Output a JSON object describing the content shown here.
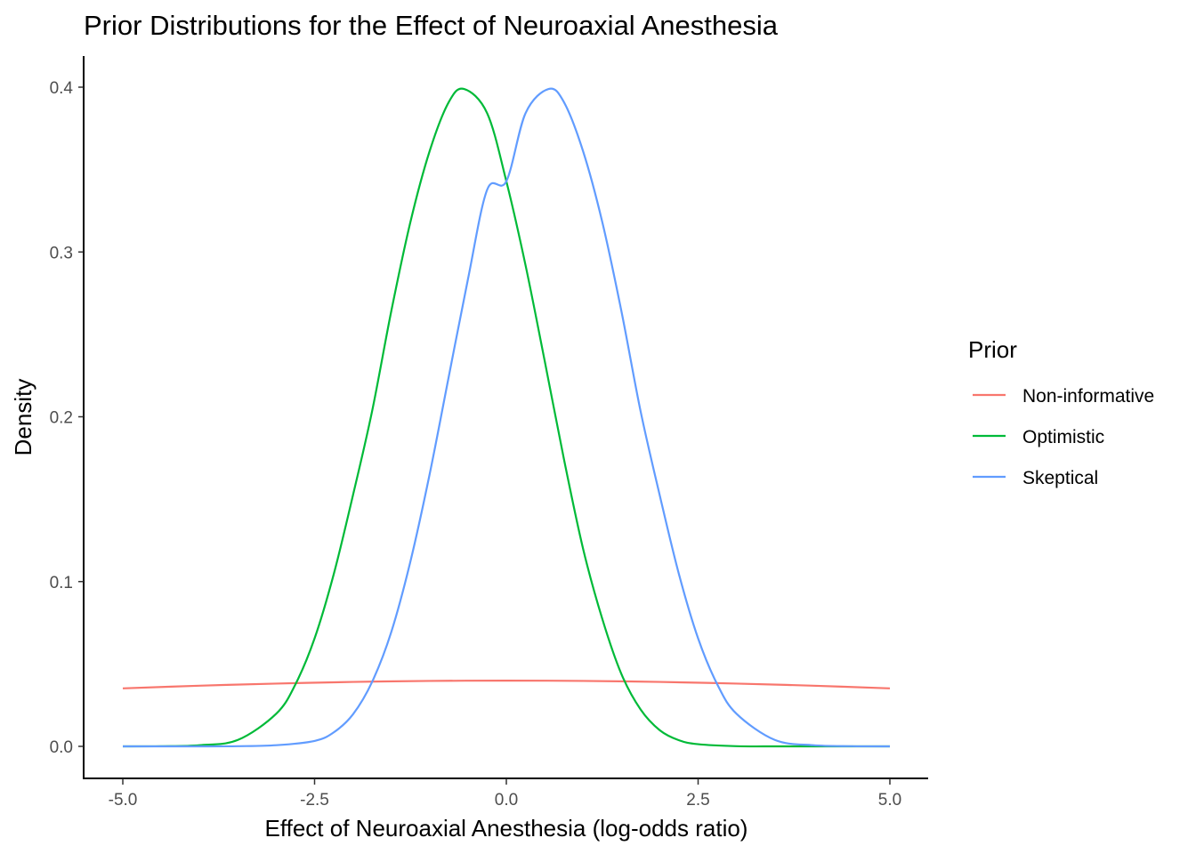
{
  "chart_data": {
    "type": "line",
    "title": "Prior Distributions for the Effect of Neuroaxial Anesthesia",
    "xlabel": "Effect of Neuroaxial Anesthesia (log-odds ratio)",
    "ylabel": "Density",
    "xlim": [
      -5,
      5
    ],
    "ylim": [
      0,
      0.4
    ],
    "xticks": [
      "-5.0",
      "-2.5",
      "0.0",
      "2.5",
      "5.0"
    ],
    "xtick_values": [
      -5,
      -2.5,
      0,
      2.5,
      5
    ],
    "yticks": [
      "0.0",
      "0.1",
      "0.2",
      "0.3",
      "0.4"
    ],
    "ytick_values": [
      0,
      0.1,
      0.2,
      0.3,
      0.4
    ],
    "grid": false,
    "legend": {
      "title": "Prior",
      "placement": "right"
    },
    "series": [
      {
        "name": "Non-informative",
        "color": "#F8766D",
        "x": [
          -5,
          -4,
          -3,
          -2,
          -1,
          0,
          1,
          2,
          3,
          4,
          5
        ],
        "y": [
          0.0352,
          0.0368,
          0.0381,
          0.0391,
          0.0397,
          0.0399,
          0.0397,
          0.0391,
          0.0381,
          0.0368,
          0.0352
        ]
      },
      {
        "name": "Optimistic",
        "color": "#00BA38",
        "x": [
          -5,
          -4.5,
          -4,
          -3.5,
          -3,
          -2.75,
          -2.5,
          -2.25,
          -2,
          -1.75,
          -1.5,
          -1.25,
          -1,
          -0.75,
          -0.55,
          -0.25,
          0,
          0.25,
          0.5,
          0.75,
          1,
          1.25,
          1.5,
          1.75,
          2,
          2.25,
          2.5,
          3,
          3.5,
          4,
          4.5,
          5
        ],
        "y": [
          0,
          0.0001,
          0.0007,
          0.0039,
          0.0198,
          0.0376,
          0.0655,
          0.1045,
          0.1523,
          0.2034,
          0.2641,
          0.3183,
          0.3612,
          0.391,
          0.3989,
          0.3842,
          0.3429,
          0.292,
          0.2339,
          0.1745,
          0.12,
          0.0775,
          0.0439,
          0.0224,
          0.0098,
          0.0037,
          0.0013,
          0.0001,
          0,
          0,
          0,
          0
        ]
      },
      {
        "name": "Skeptical",
        "color": "#619CFF",
        "x": [
          -5,
          -4.5,
          -4,
          -3.5,
          -3,
          -2.5,
          -2.25,
          -2,
          -1.75,
          -1.5,
          -1.25,
          -1,
          -0.75,
          -0.5,
          -0.25,
          0,
          0.25,
          0.55,
          0.75,
          1,
          1.25,
          1.5,
          1.75,
          2,
          2.25,
          2.5,
          2.75,
          3,
          3.5,
          4,
          4.5,
          5
        ],
        "y": [
          0,
          0,
          0,
          0.0001,
          0.0007,
          0.0033,
          0.0085,
          0.0194,
          0.0391,
          0.0694,
          0.1123,
          0.1651,
          0.2245,
          0.2836,
          0.3378,
          0.3429,
          0.3842,
          0.3989,
          0.391,
          0.3612,
          0.3183,
          0.2641,
          0.2034,
          0.1523,
          0.1045,
          0.0655,
          0.0376,
          0.0198,
          0.0039,
          0.0007,
          0.0001,
          0
        ]
      }
    ]
  }
}
